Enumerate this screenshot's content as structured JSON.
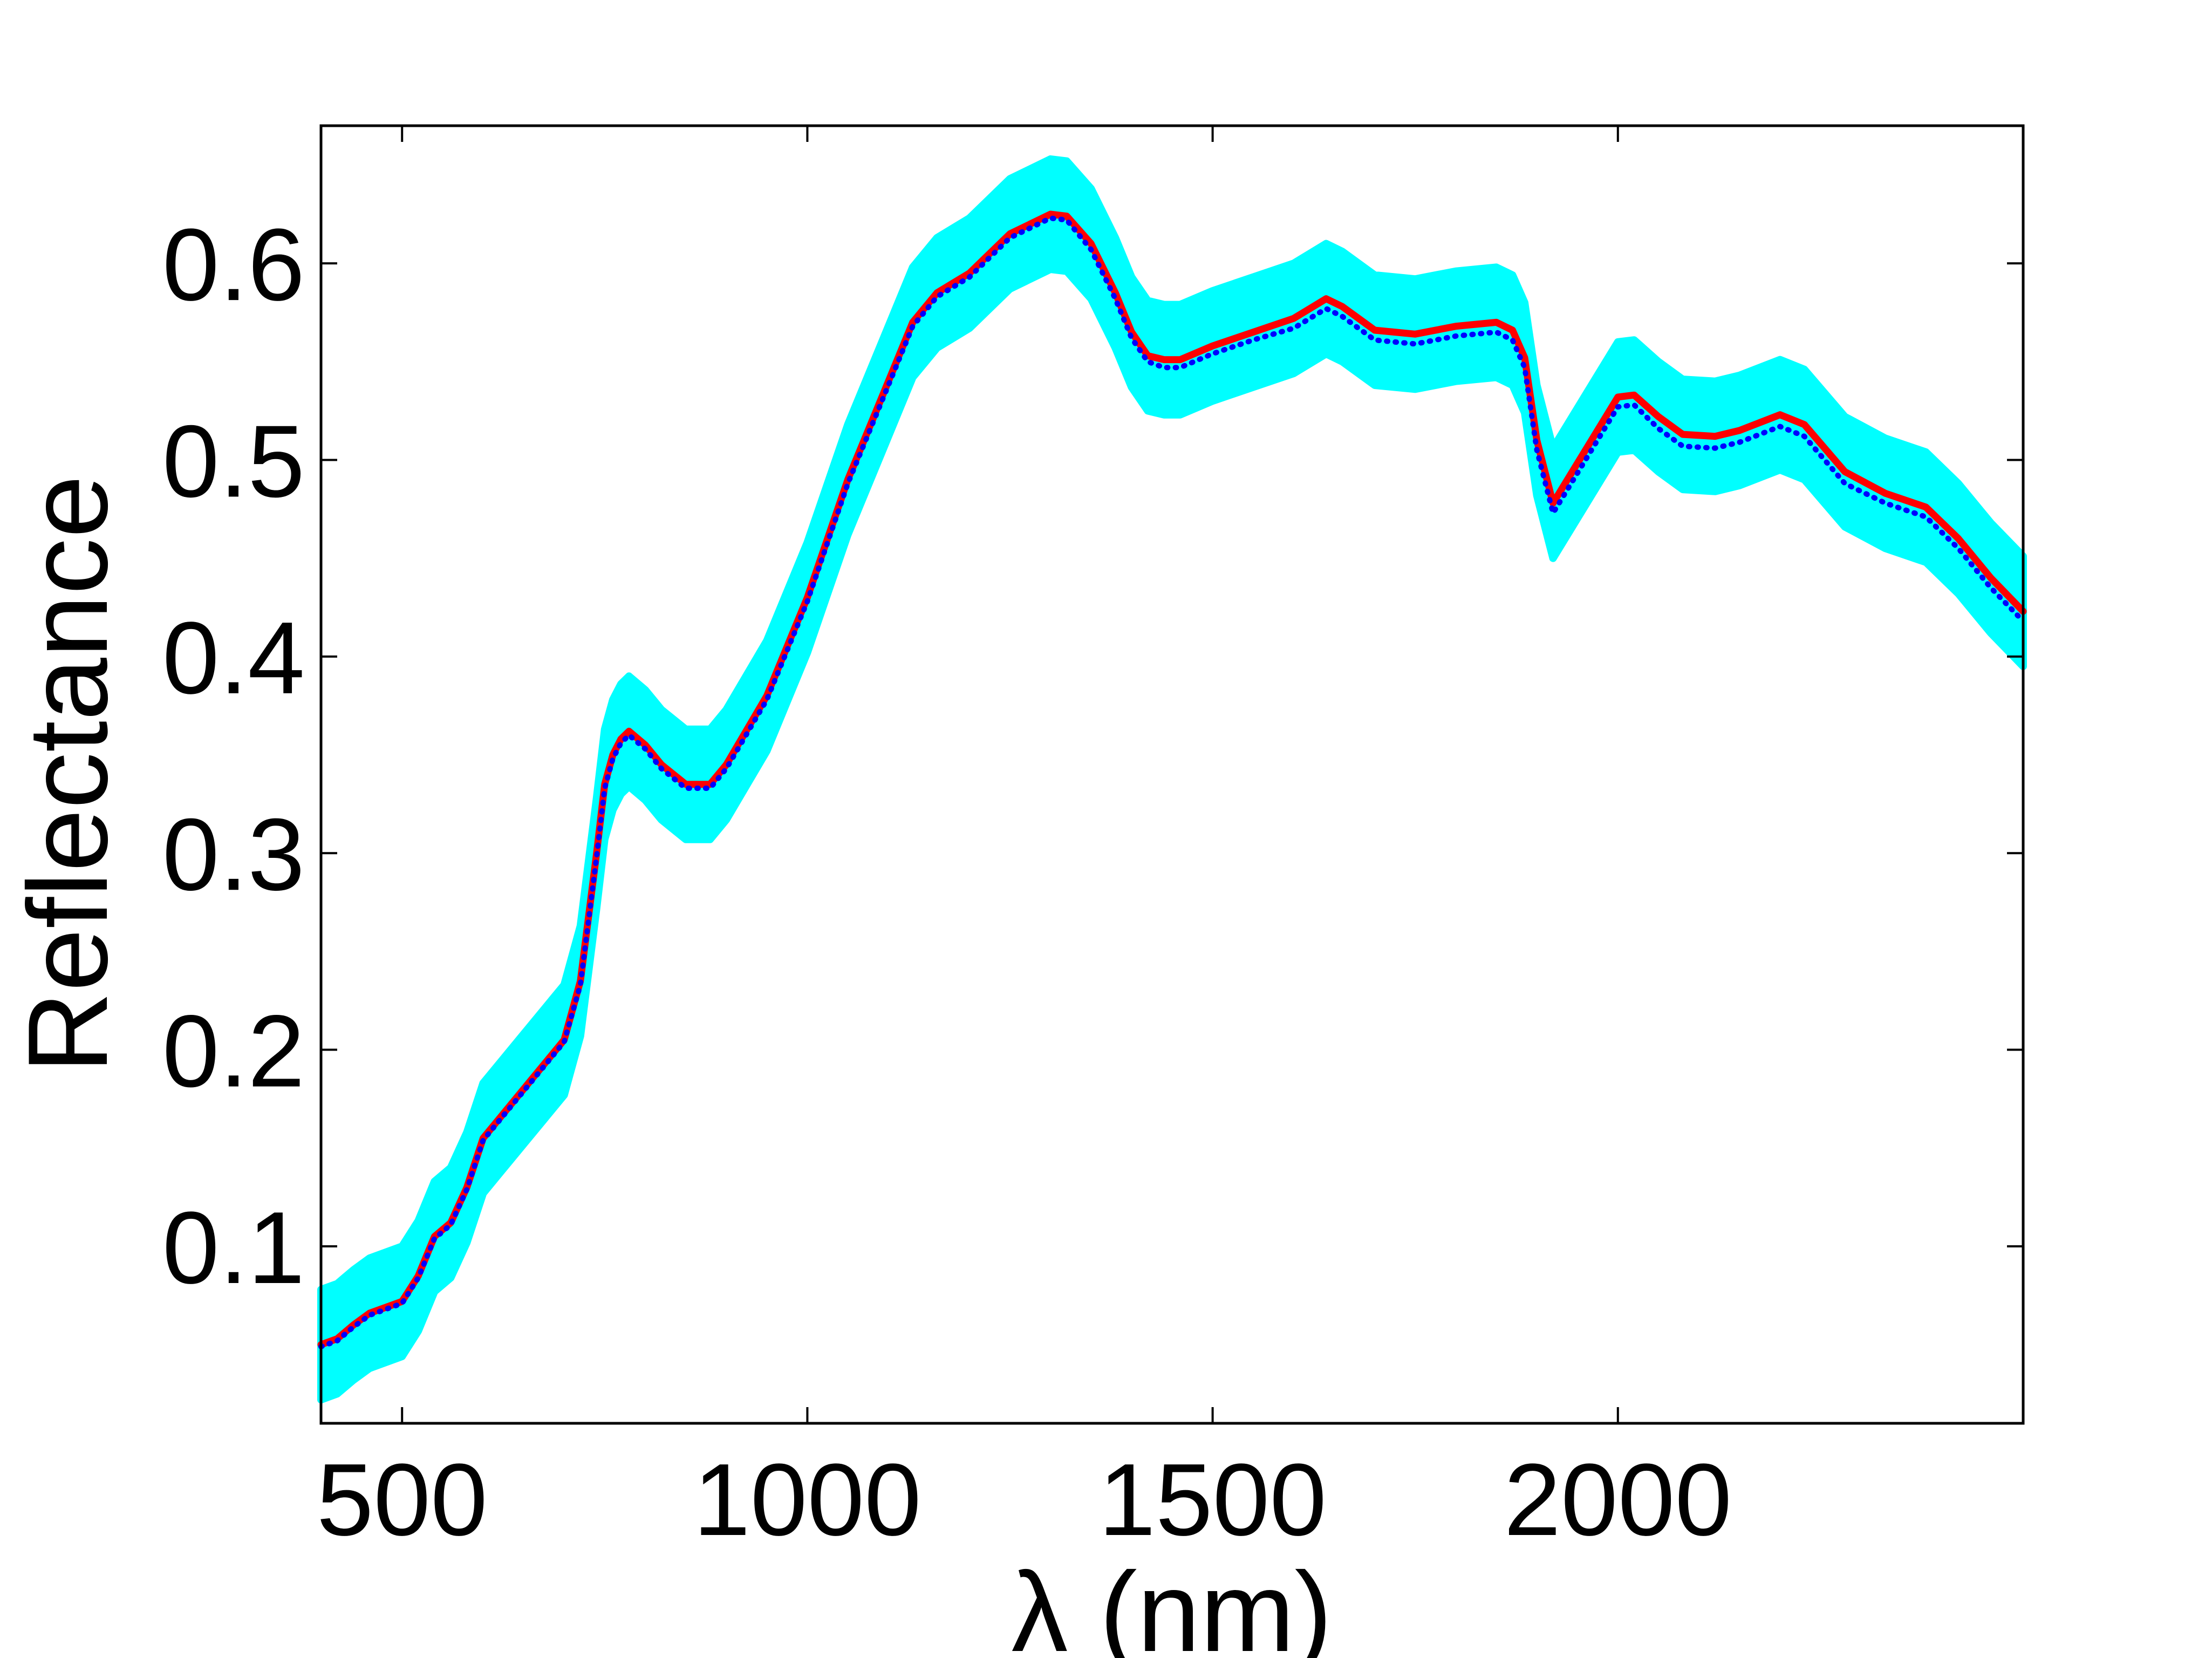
{
  "chart_data": {
    "type": "line",
    "title": "",
    "xlabel": "λ (nm)",
    "ylabel": "Reflectance",
    "xlim": [
      400,
      2500
    ],
    "ylim": [
      0.01,
      0.67
    ],
    "xticks": [
      500,
      1000,
      1500,
      2000
    ],
    "xtick_labels": [
      "500",
      "1000",
      "1500",
      "2000"
    ],
    "yticks": [
      0.1,
      0.2,
      0.3,
      0.4,
      0.5,
      0.6
    ],
    "ytick_labels": [
      "0.1",
      "0.2",
      "0.3",
      "0.4",
      "0.5",
      "0.6"
    ],
    "grid": false,
    "x": [
      400,
      420,
      440,
      460,
      500,
      520,
      540,
      560,
      580,
      600,
      620,
      650,
      700,
      720,
      740,
      750,
      760,
      770,
      780,
      800,
      820,
      850,
      880,
      900,
      950,
      1000,
      1050,
      1100,
      1130,
      1160,
      1200,
      1250,
      1300,
      1320,
      1350,
      1380,
      1400,
      1420,
      1440,
      1460,
      1500,
      1550,
      1600,
      1640,
      1660,
      1700,
      1750,
      1800,
      1850,
      1870,
      1885,
      1900,
      1920,
      1960,
      2000,
      2020,
      2050,
      2080,
      2120,
      2150,
      2200,
      2230,
      2280,
      2330,
      2380,
      2420,
      2460,
      2500
    ],
    "series": [
      {
        "color": "#ff0000",
        "style": "solid",
        "values": [
          0.05,
          0.053,
          0.06,
          0.066,
          0.072,
          0.085,
          0.105,
          0.112,
          0.13,
          0.155,
          0.165,
          0.18,
          0.205,
          0.235,
          0.3,
          0.335,
          0.35,
          0.358,
          0.362,
          0.355,
          0.345,
          0.335,
          0.335,
          0.345,
          0.38,
          0.43,
          0.49,
          0.54,
          0.57,
          0.585,
          0.595,
          0.615,
          0.625,
          0.624,
          0.61,
          0.585,
          0.565,
          0.553,
          0.551,
          0.551,
          0.558,
          0.565,
          0.572,
          0.582,
          0.578,
          0.566,
          0.564,
          0.568,
          0.57,
          0.566,
          0.552,
          0.51,
          0.478,
          0.505,
          0.532,
          0.533,
          0.522,
          0.513,
          0.512,
          0.515,
          0.523,
          0.518,
          0.494,
          0.483,
          0.476,
          0.46,
          0.44,
          0.423
        ]
      },
      {
        "color": "#0000ff",
        "style": "dotted",
        "values": [
          0.049,
          0.052,
          0.059,
          0.065,
          0.071,
          0.084,
          0.104,
          0.111,
          0.129,
          0.154,
          0.164,
          0.179,
          0.204,
          0.233,
          0.298,
          0.333,
          0.348,
          0.356,
          0.36,
          0.353,
          0.343,
          0.333,
          0.333,
          0.343,
          0.378,
          0.428,
          0.488,
          0.538,
          0.568,
          0.583,
          0.593,
          0.613,
          0.623,
          0.622,
          0.607,
          0.582,
          0.562,
          0.55,
          0.547,
          0.547,
          0.554,
          0.561,
          0.567,
          0.577,
          0.573,
          0.561,
          0.559,
          0.563,
          0.565,
          0.561,
          0.547,
          0.505,
          0.473,
          0.5,
          0.527,
          0.528,
          0.516,
          0.507,
          0.506,
          0.509,
          0.517,
          0.512,
          0.488,
          0.478,
          0.471,
          0.455,
          0.435,
          0.418
        ]
      }
    ],
    "band": {
      "color": "#00ffff",
      "half_width": 0.028
    }
  }
}
